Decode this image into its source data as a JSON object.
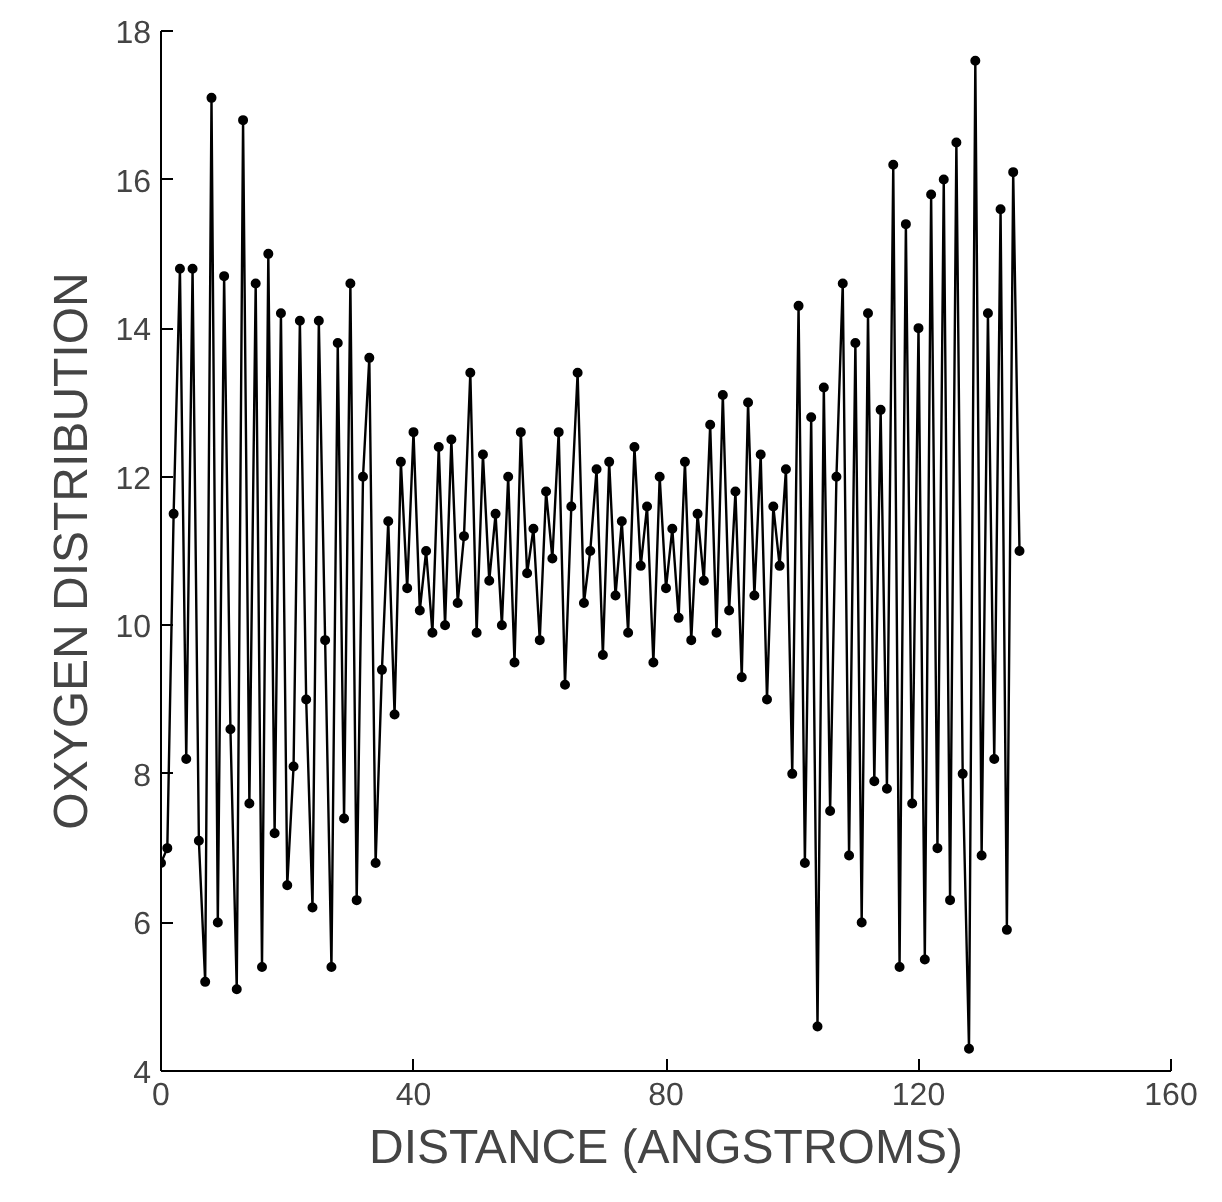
{
  "chart_data": {
    "type": "line",
    "xlabel": "DISTANCE (ANGSTROMS)",
    "ylabel": "OXYGEN DISTRIBUTION",
    "xlim": [
      0,
      160
    ],
    "ylim": [
      4,
      18
    ],
    "xticks": [
      0,
      40,
      80,
      120,
      160
    ],
    "yticks": [
      4,
      6,
      8,
      10,
      12,
      14,
      16,
      18
    ],
    "marker": "circle",
    "line_style": "solid",
    "series": [
      {
        "color": "#000000",
        "x": [
          0,
          1,
          2,
          3,
          4,
          5,
          6,
          7,
          8,
          9,
          10,
          11,
          12,
          13,
          14,
          15,
          16,
          17,
          18,
          19,
          20,
          21,
          22,
          23,
          24,
          25,
          26,
          27,
          28,
          29,
          30,
          31,
          32,
          33,
          34,
          35,
          36,
          37,
          38,
          39,
          40,
          41,
          42,
          43,
          44,
          45,
          46,
          47,
          48,
          49,
          50,
          51,
          52,
          53,
          54,
          55,
          56,
          57,
          58,
          59,
          60,
          61,
          62,
          63,
          64,
          65,
          66,
          67,
          68,
          69,
          70,
          71,
          72,
          73,
          74,
          75,
          76,
          77,
          78,
          79,
          80,
          81,
          82,
          83,
          84,
          85,
          86,
          87,
          88,
          89,
          90,
          91,
          92,
          93,
          94,
          95,
          96,
          97,
          98,
          99,
          100,
          101,
          102,
          103,
          104,
          105,
          106,
          107,
          108,
          109,
          110,
          111,
          112,
          113,
          114,
          115,
          116,
          117,
          118,
          119,
          120,
          121,
          122,
          123,
          124,
          125,
          126,
          127,
          128,
          129,
          130,
          131,
          132,
          133,
          134,
          135,
          136
        ],
        "values": [
          6.8,
          7.0,
          11.5,
          14.8,
          8.2,
          14.8,
          7.1,
          5.2,
          17.1,
          6.0,
          14.7,
          8.6,
          5.1,
          16.8,
          7.6,
          14.6,
          5.4,
          15.0,
          7.2,
          14.2,
          6.5,
          8.1,
          14.1,
          9.0,
          6.2,
          14.1,
          9.8,
          5.4,
          13.8,
          7.4,
          14.6,
          6.3,
          12.0,
          13.6,
          6.8,
          9.4,
          11.4,
          8.8,
          12.2,
          10.5,
          12.6,
          10.2,
          11.0,
          9.9,
          12.4,
          10.0,
          12.5,
          10.3,
          11.2,
          13.4,
          9.9,
          12.3,
          10.6,
          11.5,
          10.0,
          12.0,
          9.5,
          12.6,
          10.7,
          11.3,
          9.8,
          11.8,
          10.9,
          12.6,
          9.2,
          11.6,
          13.4,
          10.3,
          11.0,
          12.1,
          9.6,
          12.2,
          10.4,
          11.4,
          9.9,
          12.4,
          10.8,
          11.6,
          9.5,
          12.0,
          10.5,
          11.3,
          10.1,
          12.2,
          9.8,
          11.5,
          10.6,
          12.7,
          9.9,
          13.1,
          10.2,
          11.8,
          9.3,
          13.0,
          10.4,
          12.3,
          9.0,
          11.6,
          10.8,
          12.1,
          8.0,
          14.3,
          6.8,
          12.8,
          4.6,
          13.2,
          7.5,
          12.0,
          14.6,
          6.9,
          13.8,
          6.0,
          14.2,
          7.9,
          12.9,
          7.8,
          16.2,
          5.4,
          15.4,
          7.6,
          14.0,
          5.5,
          15.8,
          7.0,
          16.0,
          6.3,
          16.5,
          8.0,
          4.3,
          17.6,
          6.9,
          14.2,
          8.2,
          15.6,
          5.9,
          16.1,
          11.0
        ]
      }
    ]
  }
}
